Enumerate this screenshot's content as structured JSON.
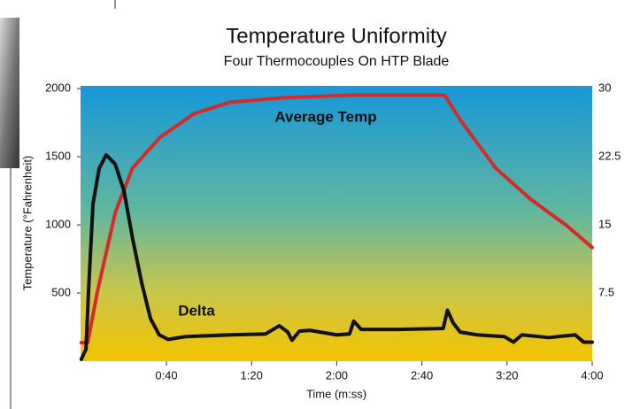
{
  "chart_data": {
    "type": "line",
    "title": "Temperature Uniformity",
    "subtitle": "Four Thermocouples On HTP Blade",
    "x_label": "Time (m:ss)",
    "y_label": "Temperature (°Fahrenheit)",
    "xlim": [
      0,
      240
    ],
    "xticks": [
      {
        "value": 40,
        "label": "0:40"
      },
      {
        "value": 80,
        "label": "1:20"
      },
      {
        "value": 120,
        "label": "2:00"
      },
      {
        "value": 160,
        "label": "2:40"
      },
      {
        "value": 200,
        "label": "3:20"
      },
      {
        "value": 240,
        "label": "4:00"
      }
    ],
    "ylim": [
      0,
      2000
    ],
    "yticks": [
      500,
      1000,
      1500,
      2000
    ],
    "y2lim": [
      0,
      30
    ],
    "y2ticks": [
      7.5,
      15,
      22.5,
      30
    ],
    "series": [
      {
        "name": "Average Temp",
        "color": "#d42a2a",
        "x": [
          0,
          3,
          7.6,
          16,
          24,
          37,
          53,
          70,
          95,
          128,
          170.6,
          178,
          194.7,
          211,
          228,
          240
        ],
        "values": [
          136,
          136,
          511,
          1092,
          1416,
          1642,
          1816,
          1900,
          1933,
          1952,
          1952,
          1771,
          1416,
          1189,
          995,
          834
        ]
      },
      {
        "name": "Delta",
        "color": "#111111",
        "axis": "y2",
        "x": [
          0,
          2.2,
          3.4,
          5.5,
          8.4,
          11.7,
          15.9,
          20,
          24.2,
          28.4,
          32.5,
          36.6,
          40.8,
          49,
          70,
          86.6,
          93,
          97,
          99,
          102.4,
          107.3,
          120,
          126,
          128,
          131.5,
          149,
          170,
          172,
          174.7,
          178,
          186,
          198.8,
          203,
          207,
          219.6,
          232,
          236,
          240
        ],
        "values": [
          0.2,
          1.3,
          7.6,
          17.3,
          21.2,
          22.7,
          21.7,
          18.8,
          13.4,
          8.6,
          4.7,
          2.9,
          2.4,
          2.7,
          2.9,
          3.0,
          3.9,
          3.2,
          2.3,
          3.3,
          3.4,
          2.9,
          3.0,
          4.4,
          3.5,
          3.5,
          3.6,
          5.6,
          4.2,
          3.2,
          2.9,
          2.7,
          2.1,
          2.9,
          2.6,
          2.9,
          2.1,
          2.1
        ]
      }
    ]
  }
}
